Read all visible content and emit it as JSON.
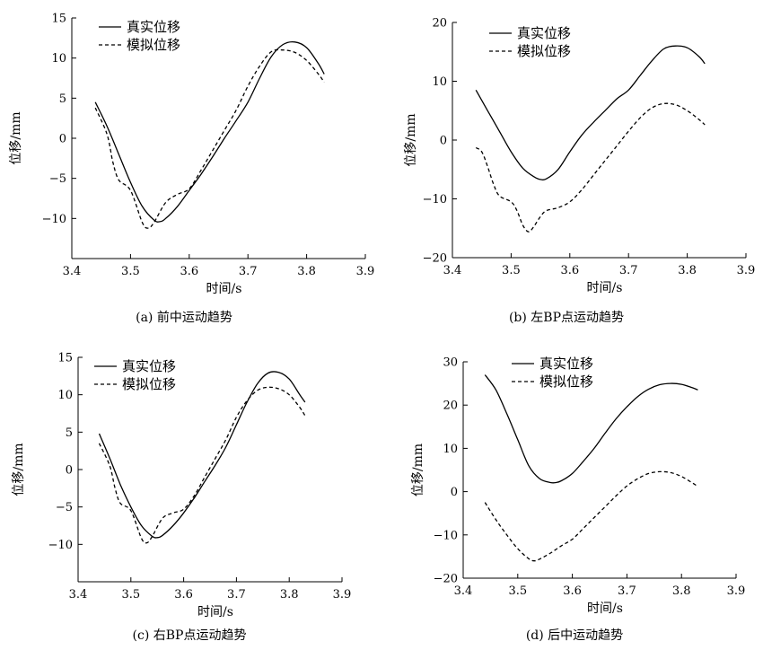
{
  "legend": {
    "real": "真实位移",
    "sim": "模拟位移"
  },
  "xlabel": "时间/s",
  "ylabel": "位移/mm",
  "chart_data": [
    {
      "id": "a",
      "type": "line",
      "caption": "(a) 前中运动趋势",
      "xlim": [
        3.4,
        3.9
      ],
      "ylim": [
        -15,
        15
      ],
      "xticks": [
        3.4,
        3.5,
        3.6,
        3.7,
        3.8,
        3.9
      ],
      "yticks": [
        15,
        10,
        5,
        0,
        -5,
        -10
      ],
      "series": [
        {
          "name": "真实位移",
          "style": "solid",
          "x": [
            3.44,
            3.46,
            3.48,
            3.5,
            3.52,
            3.54,
            3.55,
            3.56,
            3.58,
            3.6,
            3.62,
            3.64,
            3.66,
            3.68,
            3.7,
            3.72,
            3.74,
            3.76,
            3.78,
            3.8,
            3.82,
            3.83
          ],
          "y": [
            4.5,
            1.5,
            -2.0,
            -5.5,
            -8.5,
            -10.2,
            -10.4,
            -10.0,
            -8.5,
            -6.5,
            -4.5,
            -2.3,
            0,
            2.2,
            4.5,
            7.5,
            10.2,
            11.7,
            12.0,
            11.3,
            9.3,
            8.0
          ]
        },
        {
          "name": "模拟位移",
          "style": "dashed",
          "x": [
            3.44,
            3.46,
            3.47,
            3.48,
            3.5,
            3.52,
            3.53,
            3.54,
            3.56,
            3.58,
            3.6,
            3.62,
            3.64,
            3.66,
            3.68,
            3.7,
            3.72,
            3.74,
            3.76,
            3.78,
            3.8,
            3.82,
            3.83
          ],
          "y": [
            3.8,
            0.5,
            -3.0,
            -5.2,
            -6.5,
            -10.5,
            -11.2,
            -10.5,
            -8.0,
            -7.0,
            -6.3,
            -4.0,
            -1.5,
            1.0,
            3.5,
            6.5,
            9.0,
            10.8,
            11.0,
            10.7,
            9.7,
            8.0,
            7.0
          ]
        }
      ]
    },
    {
      "id": "b",
      "type": "line",
      "caption": "(b) 左BP点运动趋势",
      "xlim": [
        3.4,
        3.9
      ],
      "ylim": [
        -20,
        20
      ],
      "xticks": [
        3.4,
        3.5,
        3.6,
        3.7,
        3.8,
        3.9
      ],
      "yticks": [
        20,
        10,
        0,
        -10,
        -20
      ],
      "series": [
        {
          "name": "真实位移",
          "style": "solid",
          "x": [
            3.44,
            3.46,
            3.48,
            3.5,
            3.52,
            3.54,
            3.55,
            3.56,
            3.58,
            3.6,
            3.62,
            3.64,
            3.66,
            3.68,
            3.7,
            3.72,
            3.74,
            3.76,
            3.78,
            3.8,
            3.82,
            3.83
          ],
          "y": [
            8.5,
            5.0,
            1.5,
            -2.0,
            -4.8,
            -6.3,
            -6.7,
            -6.6,
            -5.0,
            -2.0,
            0.8,
            3.0,
            5.0,
            7.0,
            8.5,
            11.0,
            13.5,
            15.5,
            16.0,
            15.7,
            14.2,
            13.0
          ]
        },
        {
          "name": "模拟位移",
          "style": "dashed",
          "x": [
            3.44,
            3.45,
            3.46,
            3.47,
            3.48,
            3.5,
            3.51,
            3.52,
            3.53,
            3.54,
            3.55,
            3.56,
            3.58,
            3.6,
            3.62,
            3.64,
            3.66,
            3.68,
            3.7,
            3.72,
            3.74,
            3.76,
            3.78,
            3.8,
            3.82,
            3.83
          ],
          "y": [
            -1.3,
            -2.0,
            -4.5,
            -7.5,
            -9.5,
            -10.5,
            -12.0,
            -14.5,
            -15.6,
            -14.5,
            -13.0,
            -12.0,
            -11.5,
            -10.5,
            -8.5,
            -6.0,
            -3.5,
            -1.0,
            1.5,
            3.8,
            5.5,
            6.2,
            6.0,
            5.0,
            3.5,
            2.6
          ]
        }
      ]
    },
    {
      "id": "c",
      "type": "line",
      "caption": "(c) 右BP点运动趋势",
      "xlim": [
        3.4,
        3.9
      ],
      "ylim": [
        -15,
        15
      ],
      "xticks": [
        3.4,
        3.5,
        3.6,
        3.7,
        3.8,
        3.9
      ],
      "yticks": [
        15,
        10,
        5,
        0,
        -5,
        -10
      ],
      "series": [
        {
          "name": "真实位移",
          "style": "solid",
          "x": [
            3.44,
            3.46,
            3.48,
            3.5,
            3.52,
            3.54,
            3.55,
            3.56,
            3.58,
            3.6,
            3.62,
            3.64,
            3.66,
            3.68,
            3.7,
            3.72,
            3.74,
            3.76,
            3.78,
            3.8,
            3.82,
            3.83
          ],
          "y": [
            4.8,
            1.5,
            -2.0,
            -5.0,
            -7.5,
            -8.9,
            -9.1,
            -8.8,
            -7.5,
            -5.8,
            -3.8,
            -1.6,
            0.6,
            3.0,
            6.0,
            9.0,
            11.5,
            12.9,
            13.0,
            12.1,
            10.0,
            9.0
          ]
        },
        {
          "name": "模拟位移",
          "style": "dashed",
          "x": [
            3.44,
            3.46,
            3.47,
            3.48,
            3.5,
            3.52,
            3.53,
            3.54,
            3.56,
            3.58,
            3.6,
            3.62,
            3.64,
            3.66,
            3.68,
            3.7,
            3.72,
            3.74,
            3.76,
            3.78,
            3.8,
            3.82,
            3.83
          ],
          "y": [
            3.5,
            0.5,
            -2.5,
            -4.5,
            -5.5,
            -9.2,
            -9.8,
            -9.0,
            -6.5,
            -5.8,
            -5.3,
            -3.5,
            -1.0,
            1.5,
            4.0,
            7.0,
            9.2,
            10.6,
            11.0,
            10.8,
            10.0,
            8.3,
            7.2
          ]
        }
      ]
    },
    {
      "id": "d",
      "type": "line",
      "caption": "(d) 后中运动趋势",
      "xlim": [
        3.4,
        3.9
      ],
      "ylim": [
        -20,
        30
      ],
      "xticks": [
        3.4,
        3.5,
        3.6,
        3.7,
        3.8,
        3.9
      ],
      "yticks": [
        30,
        20,
        10,
        0,
        -10,
        -20
      ],
      "series": [
        {
          "name": "真实位移",
          "style": "solid",
          "x": [
            3.44,
            3.46,
            3.48,
            3.5,
            3.52,
            3.54,
            3.56,
            3.57,
            3.58,
            3.6,
            3.62,
            3.64,
            3.66,
            3.68,
            3.7,
            3.72,
            3.74,
            3.76,
            3.78,
            3.8,
            3.82,
            3.83
          ],
          "y": [
            27.0,
            23.5,
            18.0,
            12.0,
            6.0,
            3.0,
            2.1,
            2.1,
            2.5,
            4.2,
            7.0,
            10.0,
            13.5,
            16.8,
            19.6,
            22.0,
            23.7,
            24.7,
            25.0,
            24.8,
            24.0,
            23.5
          ]
        },
        {
          "name": "模拟位移",
          "style": "dashed",
          "x": [
            3.44,
            3.46,
            3.48,
            3.5,
            3.52,
            3.53,
            3.54,
            3.56,
            3.58,
            3.6,
            3.62,
            3.64,
            3.66,
            3.68,
            3.7,
            3.72,
            3.74,
            3.76,
            3.78,
            3.8,
            3.82,
            3.83
          ],
          "y": [
            -2.5,
            -6.5,
            -10.0,
            -13.2,
            -15.5,
            -16.0,
            -15.6,
            -14.2,
            -12.5,
            -11.0,
            -8.5,
            -6.0,
            -3.5,
            -1.0,
            1.3,
            3.0,
            4.2,
            4.6,
            4.4,
            3.5,
            2.0,
            1.2
          ]
        }
      ]
    }
  ]
}
